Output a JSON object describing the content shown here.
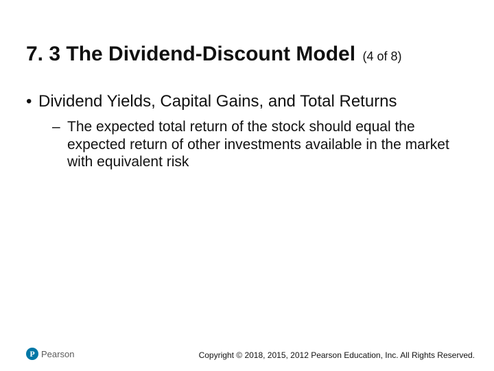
{
  "title": {
    "main": "7. 3 The Dividend-Discount Model",
    "sub": "(4 of 8)"
  },
  "bullets": {
    "level1": {
      "marker": "•",
      "text": "Dividend Yields, Capital Gains, and Total Returns"
    },
    "level2": {
      "marker": "–",
      "text": "The expected total return of the stock should equal the expected return of other investments available in the market with equivalent risk"
    }
  },
  "logo": {
    "letter": "P",
    "brand": "Pearson",
    "circle_color": "#0077a6"
  },
  "copyright": "Copyright © 2018, 2015, 2012 Pearson Education, Inc. All Rights Reserved."
}
